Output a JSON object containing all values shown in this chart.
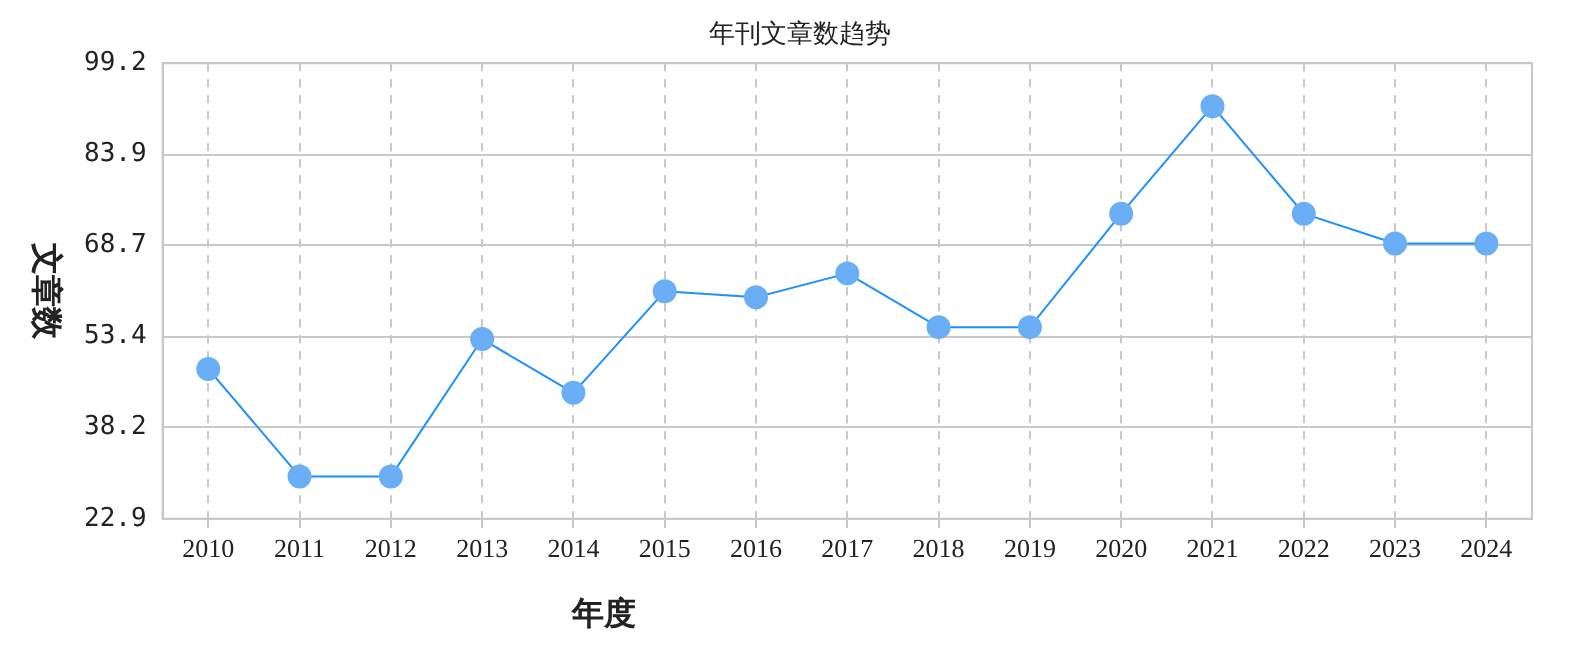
{
  "chart_data": {
    "type": "line",
    "title": "年刊文章数趋势",
    "xlabel": "年度",
    "ylabel": "文章数",
    "categories": [
      "2010",
      "2011",
      "2012",
      "2013",
      "2014",
      "2015",
      "2016",
      "2017",
      "2018",
      "2019",
      "2020",
      "2021",
      "2022",
      "2023",
      "2024"
    ],
    "series": [
      {
        "color": "#1e90ff",
        "values": [
          48,
          30,
          30,
          53,
          44,
          61,
          60,
          64,
          55,
          55,
          74,
          92,
          74,
          69,
          69
        ]
      }
    ],
    "ylim": [
      22.9,
      99.2
    ],
    "yticks": [
      22.9,
      38.2,
      53.4,
      68.7,
      83.9,
      99.2
    ],
    "grid": true,
    "legend": false,
    "marker": "circle",
    "line_style": "solid"
  }
}
